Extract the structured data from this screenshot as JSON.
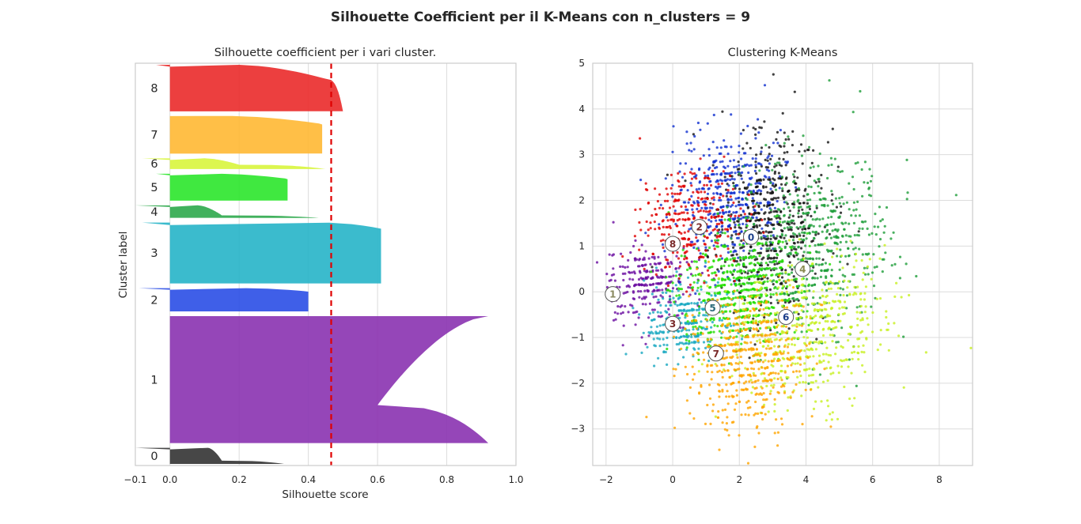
{
  "figure_title": "Silhouette Coefficient per il K-Means con n_clusters = 9",
  "chart_data": [
    {
      "type": "silhouette",
      "title": "Silhouette coefficient per i vari cluster.",
      "xlabel": "Silhouette score",
      "ylabel": "Cluster label",
      "xlim": [
        -0.1,
        1.0
      ],
      "xticks": [
        -0.1,
        0.0,
        0.2,
        0.4,
        0.6,
        0.8,
        1.0
      ],
      "xtick_labels": [
        "−0.1",
        "0.0",
        "0.2",
        "0.4",
        "0.6",
        "0.8",
        "1.0"
      ],
      "grid": true,
      "average_score": 0.466,
      "average_line_color": "#e00000",
      "clusters": [
        {
          "label": "0",
          "min": -0.1,
          "max": 0.33,
          "top_max": 0.11,
          "body_pos": 0.15,
          "knee": 0.8,
          "color": "#333333"
        },
        {
          "label": "1",
          "min": 0.0,
          "max": 0.92,
          "top_max": 0.92,
          "body_pos": 0.6,
          "knee": 0.7,
          "color": "#8a32b0"
        },
        {
          "label": "2",
          "min": -0.09,
          "max": 0.4,
          "top_max": 0.22,
          "body_pos": 0.5,
          "knee": 0.3,
          "color": "#2a4ee6"
        },
        {
          "label": "3",
          "min": -0.08,
          "max": 0.61,
          "top_max": 0.46,
          "body_pos": 0.75,
          "knee": 0.3,
          "color": "#26b4c8"
        },
        {
          "label": "4",
          "min": -0.1,
          "max": 0.43,
          "top_max": 0.08,
          "body_pos": 0.15,
          "knee": 0.8,
          "color": "#2ca84b"
        },
        {
          "label": "5",
          "min": -0.04,
          "max": 0.34,
          "top_max": 0.15,
          "body_pos": 0.45,
          "knee": 0.4,
          "color": "#2be62b"
        },
        {
          "label": "6",
          "min": -0.08,
          "max": 0.45,
          "top_max": 0.1,
          "body_pos": 0.2,
          "knee": 0.6,
          "color": "#d8f53c"
        },
        {
          "label": "7",
          "min": 0.0,
          "max": 0.44,
          "top_max": 0.18,
          "body_pos": 0.5,
          "knee": 0.3,
          "color": "#ffb833"
        },
        {
          "label": "8",
          "min": -0.04,
          "max": 0.5,
          "top_max": 0.2,
          "body_pos": 0.45,
          "knee": 0.3,
          "color": "#ea2a2a"
        }
      ],
      "cluster_sizes_relative": [
        0.045,
        0.355,
        0.065,
        0.17,
        0.035,
        0.075,
        0.03,
        0.105,
        0.13
      ]
    },
    {
      "type": "scatter",
      "title": "Clustering K-Means",
      "xlim": [
        -2.4,
        9.0
      ],
      "ylim": [
        -3.8,
        5.0
      ],
      "xticks": [
        -2,
        0,
        2,
        4,
        6,
        8
      ],
      "xtick_labels": [
        "−2",
        "0",
        "2",
        "4",
        "6",
        "8"
      ],
      "yticks": [
        -3,
        -2,
        -1,
        0,
        1,
        2,
        3,
        4,
        5
      ],
      "ytick_labels": [
        "−3",
        "−2",
        "−1",
        "0",
        "1",
        "2",
        "3",
        "4",
        "5"
      ],
      "grid": true,
      "centers": [
        {
          "label": "0",
          "x": 2.35,
          "y": 1.2,
          "color": "#1d3f8a"
        },
        {
          "label": "1",
          "x": -1.8,
          "y": -0.05,
          "color": "#8a8a60"
        },
        {
          "label": "2",
          "x": 0.8,
          "y": 1.42,
          "color": "#7a2a2a"
        },
        {
          "label": "3",
          "x": 0.0,
          "y": -0.7,
          "color": "#7a2a2a"
        },
        {
          "label": "4",
          "x": 3.9,
          "y": 0.5,
          "color": "#8a8a50"
        },
        {
          "label": "5",
          "x": 1.2,
          "y": -0.35,
          "color": "#2a6a7a"
        },
        {
          "label": "6",
          "x": 3.4,
          "y": -0.55,
          "color": "#1d3f8a"
        },
        {
          "label": "7",
          "x": 1.3,
          "y": -1.35,
          "color": "#7a2a2a"
        },
        {
          "label": "8",
          "x": 0.0,
          "y": 1.05,
          "color": "#7a2a2a"
        }
      ],
      "point_groups": [
        {
          "cluster": "0",
          "color": "#111111",
          "cx": 2.8,
          "cy": 1.5,
          "sx": 0.85,
          "sy": 1.0,
          "n": 520
        },
        {
          "cluster": "1",
          "color": "#6a0da0",
          "cx": -0.7,
          "cy": 0.2,
          "sx": 0.7,
          "sy": 0.4,
          "n": 260
        },
        {
          "cluster": "2",
          "color": "#1030d0",
          "cx": 1.7,
          "cy": 2.0,
          "sx": 0.8,
          "sy": 0.7,
          "n": 420
        },
        {
          "cluster": "3",
          "color": "#18a8c0",
          "cx": 0.4,
          "cy": -0.7,
          "sx": 0.6,
          "sy": 0.45,
          "n": 260
        },
        {
          "cluster": "4",
          "color": "#1e9e3a",
          "cx": 4.3,
          "cy": 1.0,
          "sx": 1.1,
          "sy": 1.0,
          "n": 560
        },
        {
          "cluster": "5",
          "color": "#22dd00",
          "cx": 2.0,
          "cy": 0.0,
          "sx": 0.9,
          "sy": 0.6,
          "n": 560
        },
        {
          "cluster": "6",
          "color": "#c8f020",
          "cx": 4.1,
          "cy": -0.9,
          "sx": 1.2,
          "sy": 0.8,
          "n": 500
        },
        {
          "cluster": "7",
          "color": "#ffa500",
          "cx": 2.2,
          "cy": -1.5,
          "sx": 0.9,
          "sy": 0.75,
          "n": 500
        },
        {
          "cluster": "8",
          "color": "#e00000",
          "cx": 0.5,
          "cy": 1.5,
          "sx": 0.75,
          "sy": 0.55,
          "n": 300
        }
      ]
    }
  ]
}
